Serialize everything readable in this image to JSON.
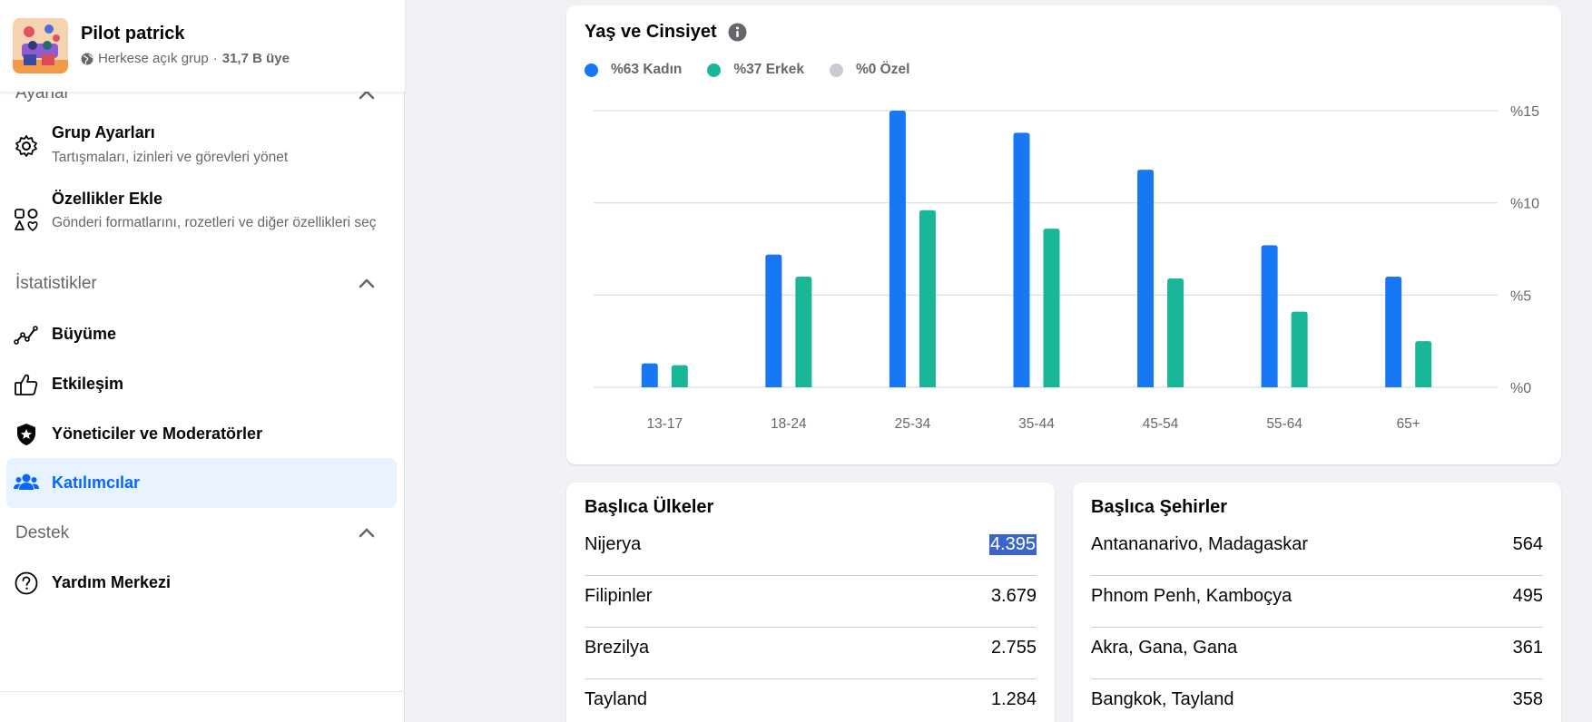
{
  "group": {
    "name": "Pilot patrick",
    "privacy": "Herkese açık grup",
    "separator": "·",
    "members": "31,7 B üye"
  },
  "sidebar": {
    "settings_section": "Ayarlar",
    "settings_items": [
      {
        "label": "Grup Ayarları",
        "desc": "Tartışmaları, izinleri ve görevleri yönet",
        "icon": "gear-icon"
      },
      {
        "label": "Özellikler Ekle",
        "desc": "Gönderi formatlarını, rozetleri ve diğer özellikleri seç",
        "icon": "shapes-icon"
      }
    ],
    "insights_section": "İstatistikler",
    "insights_items": [
      {
        "label": "Büyüme",
        "icon": "growth-icon"
      },
      {
        "label": "Etkileşim",
        "icon": "thumbs-up-icon"
      },
      {
        "label": "Yöneticiler ve Moderatörler",
        "icon": "shield-star-icon"
      },
      {
        "label": "Katılımcılar",
        "icon": "people-icon",
        "active": true
      }
    ],
    "support_section": "Destek",
    "support_items": [
      {
        "label": "Yardım Merkezi",
        "icon": "question-icon"
      }
    ]
  },
  "age_gender": {
    "title": "Yaş ve Cinsiyet",
    "legend": {
      "women": "%63 Kadın",
      "men": "%37 Erkek",
      "custom": "%0 Özel"
    }
  },
  "colors": {
    "women": "#1877f2",
    "men": "#19b797",
    "custom": "#c8cbd0",
    "accent": "#0866ff"
  },
  "chart_data": {
    "type": "bar",
    "title": "Yaş ve Cinsiyet",
    "categories": [
      "13-17",
      "18-24",
      "25-34",
      "35-44",
      "45-54",
      "55-64",
      "65+"
    ],
    "series": [
      {
        "name": "Kadın",
        "values": [
          1.3,
          7.2,
          15.0,
          13.8,
          11.8,
          7.7,
          6.0
        ]
      },
      {
        "name": "Erkek",
        "values": [
          1.2,
          6.0,
          9.6,
          8.6,
          5.9,
          4.1,
          2.5
        ]
      }
    ],
    "y_ticks": [
      "%0",
      "%5",
      "%10",
      "%15"
    ],
    "y_tick_values": [
      0,
      5,
      10,
      15
    ],
    "ylim": [
      0,
      15
    ],
    "ylabel_position": "right",
    "grid": true
  },
  "top_countries": {
    "title": "Başlıca Ülkeler",
    "rows": [
      {
        "name": "Nijerya",
        "value": "4.395"
      },
      {
        "name": "Filipinler",
        "value": "3.679"
      },
      {
        "name": "Brezilya",
        "value": "2.755"
      },
      {
        "name": "Tayland",
        "value": "1.284"
      }
    ]
  },
  "top_cities": {
    "title": "Başlıca Şehirler",
    "rows": [
      {
        "name": "Antananarivo, Madagaskar",
        "value": "564"
      },
      {
        "name": "Phnom Penh, Kamboçya",
        "value": "495"
      },
      {
        "name": "Akra, Gana, Gana",
        "value": "361"
      },
      {
        "name": "Bangkok, Tayland",
        "value": "358"
      }
    ]
  }
}
